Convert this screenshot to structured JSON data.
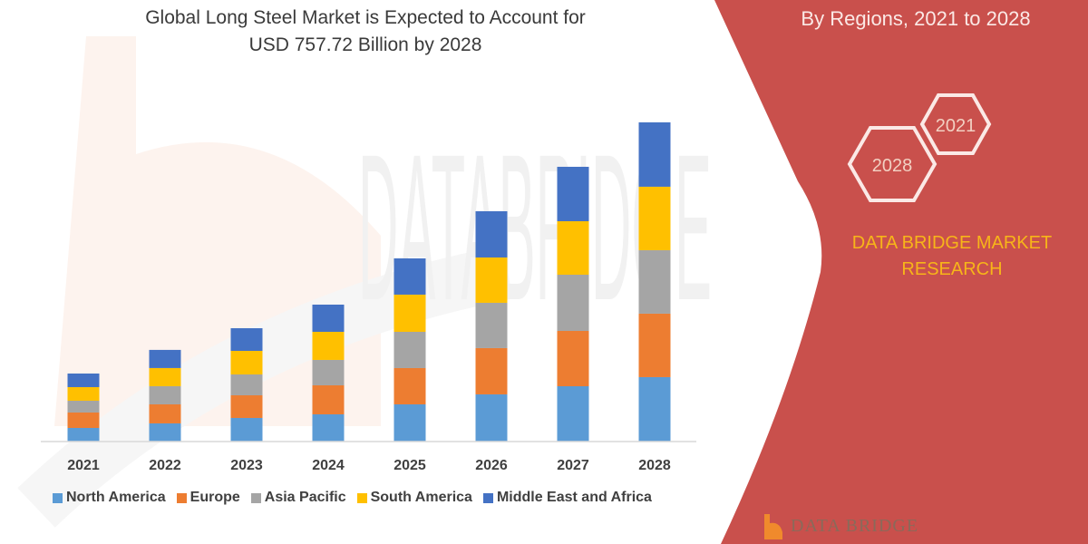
{
  "chart_data": {
    "type": "bar",
    "stacked": true,
    "title": "Global Long Steel Market is Expected to Account for USD 757.72 Billion by 2028",
    "title_lines": [
      "Global Long Steel Market is Expected to Account for",
      "USD 757.72 Billion by 2028"
    ],
    "categories": [
      "2021",
      "2022",
      "2023",
      "2024",
      "2025",
      "2026",
      "2027",
      "2028"
    ],
    "series": [
      {
        "name": "North America",
        "color": "#5b9bd5",
        "values": [
          32.3,
          43.1,
          56.0,
          64.6,
          88.3,
          112.0,
          131.3,
          152.9
        ]
      },
      {
        "name": "Europe",
        "color": "#ed7d31",
        "values": [
          36.6,
          45.2,
          53.8,
          68.9,
          86.1,
          109.8,
          131.3,
          150.7
        ]
      },
      {
        "name": "Asia Pacific",
        "color": "#a5a5a5",
        "values": [
          28.0,
          43.1,
          49.5,
          60.3,
          86.1,
          107.6,
          133.5,
          150.7
        ]
      },
      {
        "name": "South America",
        "color": "#ffc000",
        "values": [
          32.3,
          43.1,
          56.0,
          66.7,
          88.3,
          107.6,
          127.0,
          150.7
        ]
      },
      {
        "name": "Middle East and Africa",
        "color": "#4472c4",
        "values": [
          32.3,
          43.1,
          53.8,
          64.6,
          86.1,
          109.8,
          129.2,
          152.9
        ]
      }
    ],
    "ylim": [
      0,
      800
    ],
    "y_axis_shown": false,
    "grid": false,
    "legend": "bottom"
  },
  "panel": {
    "title": "By Regions, 2021 to 2028",
    "hex_labels": [
      "2021",
      "2028"
    ],
    "brand_lines": [
      "DATA BRIDGE MARKET",
      "RESEARCH"
    ],
    "color": "#c9504c",
    "brand_color": "#f7b519"
  },
  "watermark": "DATABRIDGE",
  "footer_logo": "DATA BRIDGE"
}
